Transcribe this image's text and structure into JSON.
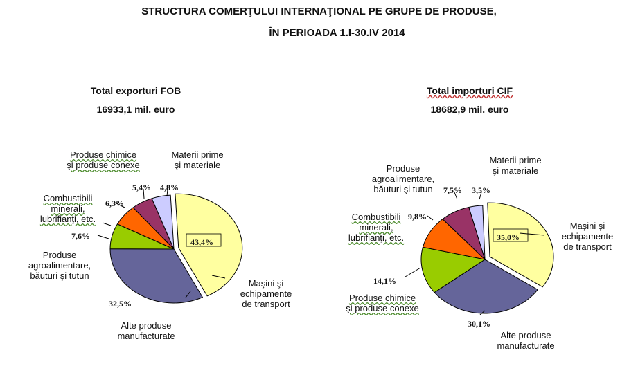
{
  "title_line1": "STRUCTURA COMERŢULUI INTERNAŢIONAL PE GRUPE DE PRODUSE,",
  "title_line2": "ÎN PERIOADA 1.I-30.IV 2014",
  "colors": {
    "masini": "#ffffa0",
    "alte": "#65659a",
    "agro": "#99cc00",
    "chimice": "#99cc00",
    "combustibili": "#ff6600",
    "materii": "#993366",
    "lavender": "#ccccff"
  },
  "chart_data": [
    {
      "type": "pie",
      "title": "Total exporturi FOB",
      "subtitle": "16933,1 mil. euro",
      "slices": [
        {
          "key": "masini",
          "name_lines": [
            "Maşini şi",
            "echipamente",
            "de transport"
          ],
          "value": 43.4,
          "label": "43,4%",
          "color": "#ffffa0"
        },
        {
          "key": "alte",
          "name_lines": [
            "Alte produse",
            "manufacturate"
          ],
          "value": 32.5,
          "label": "32,5%",
          "color": "#65659a"
        },
        {
          "key": "agro",
          "name_lines": [
            "Produse",
            "agroalimentare,",
            "băuturi şi tutun"
          ],
          "value": 7.6,
          "label": "7,6%",
          "color": "#99cc00"
        },
        {
          "key": "combustibili",
          "name_lines": [
            "Combustibili",
            "minerali,",
            "lubrifianţi, etc."
          ],
          "value": 6.3,
          "label": "6,3%",
          "color": "#ff6600"
        },
        {
          "key": "chimice",
          "name_lines": [
            "Produse chimice",
            "şi produse conexe"
          ],
          "value": 5.4,
          "label": "5,4%",
          "color": "#993366"
        },
        {
          "key": "materii",
          "name_lines": [
            "Materii  prime",
            "şi materiale"
          ],
          "value": 4.8,
          "label": "4,8%",
          "color": "#ccccff"
        }
      ]
    },
    {
      "type": "pie",
      "title": "Total importuri  CIF",
      "subtitle": "18682,9 mil. euro",
      "slices": [
        {
          "key": "masini",
          "name_lines": [
            "Maşini şi",
            "echipamente",
            "de transport"
          ],
          "value": 35.0,
          "label": "35,0%",
          "color": "#ffffa0"
        },
        {
          "key": "alte",
          "name_lines": [
            "Alte produse",
            "manufacturate"
          ],
          "value": 30.1,
          "label": "30,1%",
          "color": "#65659a"
        },
        {
          "key": "chimice",
          "name_lines": [
            "Produse chimice",
            "şi produse conexe"
          ],
          "value": 14.1,
          "label": "14,1%",
          "color": "#99cc00"
        },
        {
          "key": "combustibili",
          "name_lines": [
            "Combustibili",
            "minerali,",
            "lubrifianţi, etc."
          ],
          "value": 9.8,
          "label": "9,8%",
          "color": "#ff6600"
        },
        {
          "key": "agro",
          "name_lines": [
            "Produse",
            "agroalimentare,",
            "băuturi şi tutun"
          ],
          "value": 7.5,
          "label": "7,5%",
          "color": "#993366"
        },
        {
          "key": "materii",
          "name_lines": [
            "Materii  prime",
            "şi materiale"
          ],
          "value": 3.5,
          "label": "3,5%",
          "color": "#ccccff"
        }
      ]
    }
  ]
}
